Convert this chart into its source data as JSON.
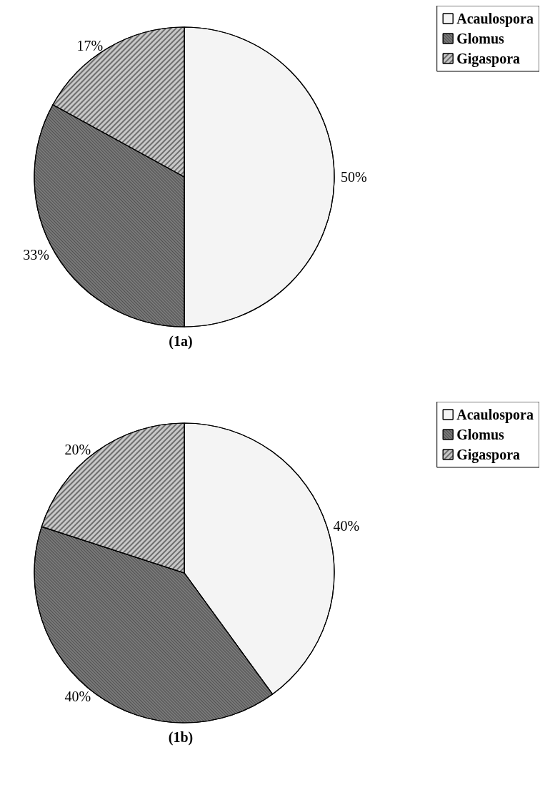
{
  "chart_data": [
    {
      "type": "pie",
      "title": "(1a)",
      "categories": [
        "Acaulospora",
        "Glomus",
        "Gigaspora"
      ],
      "values": [
        50,
        33,
        17
      ],
      "value_labels": [
        "50%",
        "33%",
        "17%"
      ],
      "colors": [
        "#f4f4f4",
        "#7a7a7a",
        "#c8c8c8"
      ],
      "legend": "top right"
    },
    {
      "type": "pie",
      "title": "(1b)",
      "categories": [
        "Acaulospora",
        "Glomus",
        "Gigaspora"
      ],
      "values": [
        40,
        40,
        20
      ],
      "value_labels": [
        "40%",
        "40%",
        "20%"
      ],
      "colors": [
        "#f4f4f4",
        "#7a7a7a",
        "#c8c8c8"
      ],
      "legend": "top right"
    }
  ]
}
